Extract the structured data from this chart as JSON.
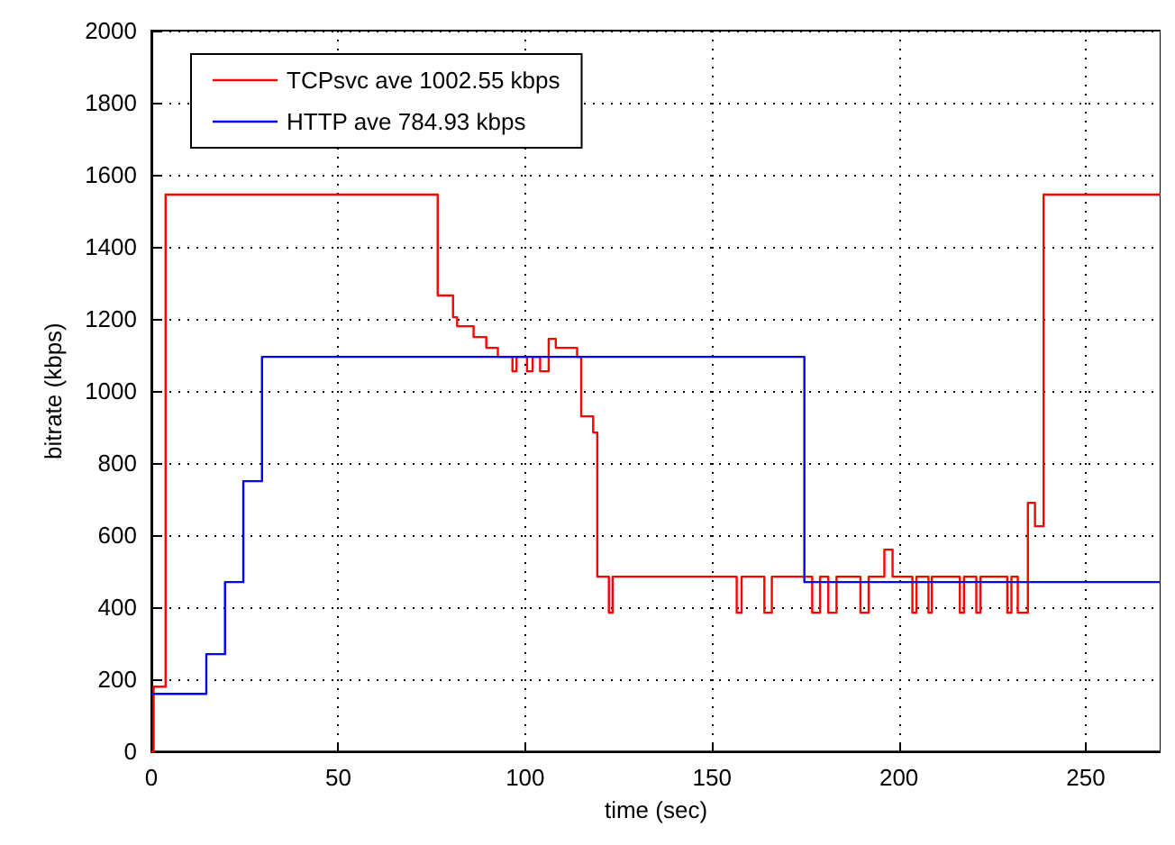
{
  "chart_data": {
    "type": "step",
    "xlabel": "time (sec)",
    "ylabel": "bitrate (kbps)",
    "xlim": [
      0,
      270
    ],
    "xticks": [
      0,
      50,
      100,
      150,
      200,
      250
    ],
    "ylim": [
      0,
      2000
    ],
    "yticks": [
      0,
      200,
      400,
      600,
      800,
      1000,
      1200,
      1400,
      1600,
      1800,
      2000
    ],
    "grid": true,
    "legend": "top left",
    "marker": "none",
    "line_style": "solid",
    "series": [
      {
        "name": "TCPsvc ave 1002.55 kbps",
        "color": "#ff0000",
        "x": [
          0,
          0.6,
          3.8,
          76.6,
          80.7,
          81.8,
          86.2,
          89.6,
          92.7,
          96.6,
          97.7,
          100.5,
          102,
          104,
          106.3,
          108.2,
          113.9,
          115,
          118.2,
          119.3,
          122.4,
          123.4,
          156.6,
          157.9,
          164,
          166,
          176.8,
          178.9,
          181.1,
          183.3,
          189.7,
          191.9,
          196.1,
          198.3,
          203.6,
          204.7,
          207.9,
          208.8,
          216.3,
          217.4,
          220.7,
          221.8,
          229,
          230.1,
          231.8,
          234.5,
          236.4,
          238.7,
          270
        ],
        "values": [
          0,
          180,
          1545,
          1265,
          1205,
          1180,
          1150,
          1120,
          1095,
          1055,
          1095,
          1055,
          1095,
          1055,
          1145,
          1120,
          1095,
          930,
          885,
          485,
          385,
          485,
          385,
          485,
          385,
          485,
          385,
          485,
          385,
          485,
          385,
          485,
          560,
          485,
          385,
          485,
          385,
          485,
          385,
          485,
          385,
          485,
          385,
          485,
          385,
          690,
          625,
          1545,
          1545
        ]
      },
      {
        "name": "HTTP ave 784.93 kbps",
        "color": "#0000ff",
        "x": [
          0,
          14.7,
          19.7,
          24.6,
          29.6,
          174.7,
          270
        ],
        "values": [
          160,
          270,
          470,
          750,
          1095,
          470,
          470
        ]
      }
    ]
  }
}
